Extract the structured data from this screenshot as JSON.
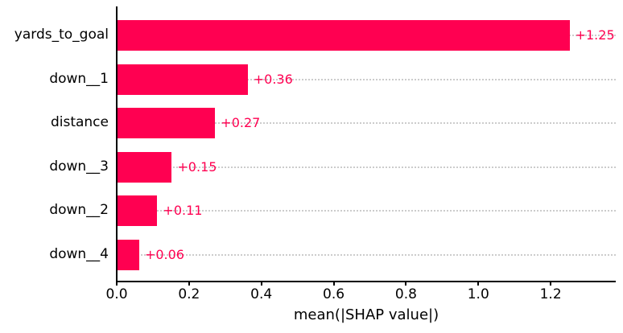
{
  "chart_data": {
    "type": "bar",
    "orientation": "horizontal",
    "title": "",
    "xlabel": "mean(|SHAP value|)",
    "ylabel": "",
    "categories": [
      "yards_to_goal",
      "down__1",
      "distance",
      "down__3",
      "down__2",
      "down__4"
    ],
    "values": [
      1.25,
      0.36,
      0.27,
      0.15,
      0.11,
      0.06
    ],
    "value_labels": [
      "+1.25",
      "+0.36",
      "+0.27",
      "+0.15",
      "+0.11",
      "+0.06"
    ],
    "xlim": [
      0,
      1.38
    ],
    "x_ticks": [
      0.0,
      0.2,
      0.4,
      0.6,
      0.8,
      1.0,
      1.2
    ],
    "x_tick_labels": [
      "0.0",
      "0.2",
      "0.4",
      "0.6",
      "0.8",
      "1.0",
      "1.2"
    ],
    "grid": "horizontal-dotted-per-row",
    "legend_position": "none",
    "colors": {
      "bar": "#ff0051",
      "value_label": "#ff0051",
      "grid_line": "#cccccc",
      "axis": "#000000",
      "tick_label": "#000000",
      "category_label": "#000000",
      "background": "#ffffff"
    }
  }
}
